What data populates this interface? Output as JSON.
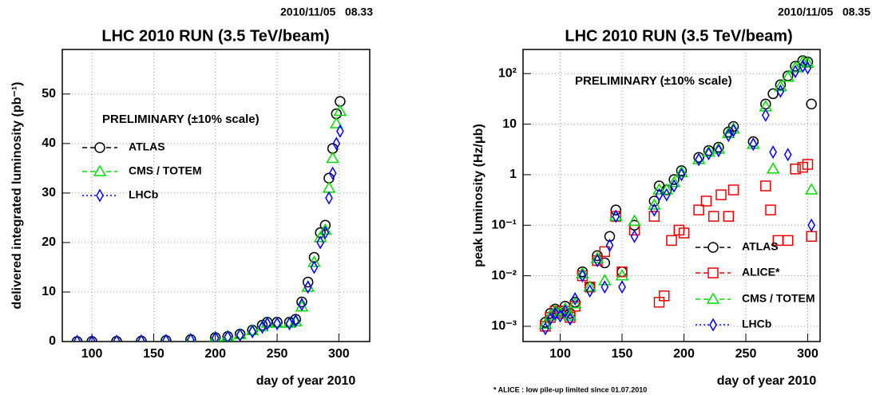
{
  "chart_data": [
    {
      "type": "scatter",
      "timestamp": "2010/11/05   08.33",
      "title": "LHC 2010 RUN (3.5 TeV/beam)",
      "y_label": "delivered integrated luminosity (pb⁻¹)",
      "x_label": "day of year 2010",
      "annotation": "PRELIMINARY (±10% scale)",
      "xlim": [
        76,
        325
      ],
      "xticks": [
        100,
        150,
        200,
        250,
        300
      ],
      "ylim": [
        0,
        59
      ],
      "yticks": [
        0,
        10,
        20,
        30,
        40,
        50
      ],
      "grid": true,
      "log_y": false,
      "legend": "upper left",
      "series": [
        {
          "name": "ATLAS",
          "color": "#000000",
          "marker": "circle",
          "x": [
            88,
            100,
            120,
            140,
            160,
            180,
            200,
            210,
            220,
            230,
            238,
            242,
            250,
            260,
            265,
            270,
            275,
            280,
            285,
            289,
            292,
            295,
            298,
            301
          ],
          "values": [
            0.01,
            0.02,
            0.05,
            0.1,
            0.2,
            0.4,
            0.8,
            1.0,
            1.5,
            2.3,
            3.3,
            3.9,
            3.9,
            3.9,
            4.5,
            8,
            12,
            17,
            22,
            23.5,
            33,
            39,
            46,
            48.5
          ]
        },
        {
          "name": "CMS / TOTEM",
          "color": "#00dd00",
          "marker": "triangle",
          "x": [
            88,
            100,
            120,
            140,
            160,
            180,
            200,
            210,
            220,
            230,
            238,
            242,
            250,
            260,
            265,
            270,
            275,
            280,
            285,
            289,
            292,
            295,
            298,
            301
          ],
          "values": [
            0.01,
            0.02,
            0.05,
            0.1,
            0.2,
            0.4,
            0.8,
            1.0,
            1.4,
            2.2,
            3.0,
            3.7,
            3.7,
            3.7,
            4.0,
            7,
            11,
            16,
            21,
            22.5,
            31,
            37,
            44,
            46.5
          ]
        },
        {
          "name": "LHCb",
          "color": "#0000ff",
          "marker": "diamond",
          "x": [
            88,
            100,
            120,
            140,
            160,
            180,
            200,
            210,
            220,
            230,
            238,
            242,
            250,
            260,
            265,
            270,
            275,
            280,
            285,
            289,
            292,
            295,
            298,
            301
          ],
          "values": [
            0.01,
            0.02,
            0.04,
            0.09,
            0.18,
            0.35,
            0.7,
            0.9,
            1.3,
            2.0,
            2.9,
            3.6,
            3.6,
            3.6,
            4.2,
            7.5,
            11,
            15,
            20,
            22,
            29,
            34,
            40,
            42.5
          ]
        }
      ]
    },
    {
      "type": "scatter",
      "timestamp": "2010/11/05   08.35",
      "title": "LHC 2010 RUN (3.5 TeV/beam)",
      "y_label": "peak luminosity (Hz/μb)",
      "x_label": "day of year 2010",
      "annotation": "PRELIMINARY (±10% scale)",
      "footnote": "* ALICE : low pile-up limited since 01.07.2010",
      "xlim": [
        70,
        310
      ],
      "xticks": [
        100,
        150,
        200,
        250,
        300
      ],
      "ylim": [
        0.0005,
        300
      ],
      "yticks": [
        {
          "value": 100,
          "label": "10²"
        },
        10,
        1,
        {
          "value": 0.1,
          "label": "10⁻¹"
        },
        {
          "value": 0.01,
          "label": "10⁻²"
        },
        {
          "value": 0.001,
          "label": "10⁻³"
        }
      ],
      "grid": true,
      "log_y": true,
      "legend": "lower right",
      "series": [
        {
          "name": "ATLAS",
          "color": "#000000",
          "marker": "circle",
          "x": [
            88,
            92,
            96,
            100,
            104,
            108,
            112,
            118,
            124,
            130,
            136,
            140,
            145,
            150,
            160,
            176,
            180,
            186,
            192,
            198,
            212,
            220,
            228,
            236,
            240,
            256,
            266,
            272,
            278,
            284,
            290,
            296,
            300,
            303
          ],
          "values": [
            0.0012,
            0.0018,
            0.0022,
            0.002,
            0.0025,
            0.0018,
            0.003,
            0.012,
            0.006,
            0.025,
            0.018,
            0.06,
            0.2,
            0.012,
            0.1,
            0.3,
            0.6,
            0.5,
            0.8,
            1.2,
            2.2,
            3,
            3.5,
            7,
            9,
            4.5,
            25,
            40,
            60,
            90,
            140,
            180,
            170,
            25
          ]
        },
        {
          "name": "ALICE*",
          "color": "#ee0000",
          "marker": "square",
          "x": [
            88,
            92,
            96,
            100,
            104,
            108,
            112,
            118,
            124,
            130,
            136,
            145,
            150,
            160,
            176,
            180,
            184,
            190,
            196,
            200,
            212,
            218,
            224,
            230,
            236,
            240,
            266,
            270,
            276,
            284,
            290,
            296,
            300,
            303
          ],
          "values": [
            0.001,
            0.0015,
            0.002,
            0.0018,
            0.002,
            0.0015,
            0.0025,
            0.01,
            0.006,
            0.02,
            0.03,
            0.15,
            0.012,
            0.08,
            0.15,
            0.003,
            0.004,
            0.05,
            0.08,
            0.07,
            0.2,
            0.3,
            0.15,
            0.4,
            0.15,
            0.5,
            0.6,
            0.2,
            0.05,
            0.05,
            1.3,
            1.4,
            1.6,
            0.06
          ]
        },
        {
          "name": "CMS / TOTEM",
          "color": "#00dd00",
          "marker": "triangle",
          "x": [
            88,
            92,
            96,
            100,
            104,
            108,
            112,
            118,
            124,
            130,
            136,
            145,
            150,
            160,
            176,
            180,
            186,
            192,
            198,
            212,
            220,
            228,
            236,
            240,
            256,
            266,
            272,
            278,
            284,
            290,
            296,
            300,
            303
          ],
          "values": [
            0.0011,
            0.0016,
            0.002,
            0.0018,
            0.0022,
            0.0016,
            0.0028,
            0.011,
            0.006,
            0.022,
            0.008,
            0.15,
            0.01,
            0.12,
            0.25,
            0.5,
            0.5,
            0.7,
            1.1,
            2,
            2.8,
            3.2,
            6.5,
            8,
            4,
            22,
            1.3,
            55,
            85,
            130,
            170,
            160,
            0.5
          ]
        },
        {
          "name": "LHCb",
          "color": "#0000ff",
          "marker": "diamond",
          "x": [
            88,
            92,
            96,
            100,
            104,
            108,
            112,
            118,
            124,
            130,
            136,
            140,
            145,
            150,
            160,
            176,
            180,
            186,
            192,
            198,
            212,
            220,
            228,
            236,
            240,
            256,
            266,
            272,
            278,
            284,
            290,
            296,
            300,
            303
          ],
          "values": [
            0.0009,
            0.0014,
            0.0018,
            0.0016,
            0.002,
            0.0014,
            0.0035,
            0.01,
            0.005,
            0.02,
            0.006,
            0.04,
            0.15,
            0.006,
            0.06,
            0.2,
            0.4,
            0.4,
            0.6,
            1,
            2,
            2.6,
            3,
            6,
            7.5,
            4,
            15,
            2.8,
            45,
            2.5,
            110,
            140,
            130,
            0.1
          ]
        }
      ]
    }
  ]
}
